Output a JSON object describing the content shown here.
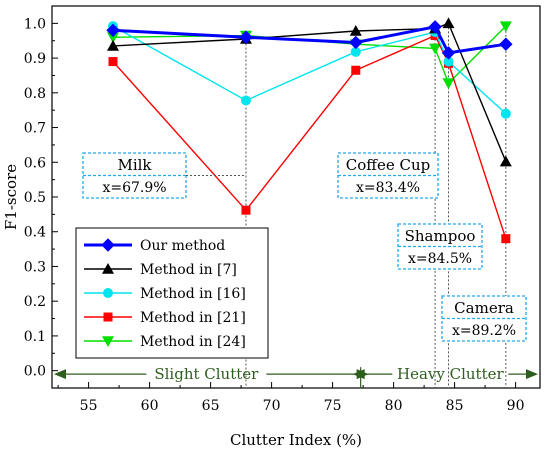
{
  "chart_data": {
    "type": "line",
    "xlabel": "Clutter Index (%)",
    "ylabel": "F1-score",
    "xlim": [
      52,
      92
    ],
    "ylim": [
      -0.05,
      1.05
    ],
    "xticks": [
      55,
      60,
      65,
      70,
      75,
      80,
      85,
      90
    ],
    "yticks": [
      0.0,
      0.1,
      0.2,
      0.3,
      0.4,
      0.5,
      0.6,
      0.7,
      0.8,
      0.9,
      1.0
    ],
    "x": [
      57.0,
      67.9,
      76.9,
      83.4,
      84.5,
      89.2
    ],
    "series": [
      {
        "name": "Our method",
        "color": "#0000ff",
        "marker": "diamond",
        "values": [
          0.98,
          0.96,
          0.945,
          0.99,
          0.915,
          0.94
        ]
      },
      {
        "name": "Method in [7]",
        "color": "#000000",
        "marker": "triangle-up",
        "values": [
          0.935,
          0.955,
          0.978,
          0.985,
          1.0,
          0.602
        ]
      },
      {
        "name": "Method in [16]",
        "color": "#00e5ee",
        "marker": "circle",
        "values": [
          0.992,
          0.778,
          0.918,
          0.975,
          0.89,
          0.74
        ]
      },
      {
        "name": "Method in [21]",
        "color": "#ff0000",
        "marker": "square",
        "values": [
          0.89,
          0.462,
          0.865,
          0.965,
          0.885,
          0.38
        ]
      },
      {
        "name": "Method in [24]",
        "color": "#00e000",
        "marker": "triangle-down",
        "values": [
          0.96,
          0.965,
          0.94,
          0.928,
          0.828,
          0.992
        ]
      }
    ],
    "annotations": [
      {
        "name": "Milk",
        "label": "x=67.9%",
        "x": 67.9
      },
      {
        "name": "Coffee Cup",
        "label": "x=83.4%",
        "x": 83.4
      },
      {
        "name": "Shampoo",
        "label": "x=84.5%",
        "x": 84.5
      },
      {
        "name": "Camera",
        "label": "x=89.2%",
        "x": 89.2
      }
    ],
    "regions": [
      {
        "label": "Slight Clutter",
        "from": 52,
        "to": 77.3
      },
      {
        "label": "Heavy Clutter",
        "from": 77.3,
        "to": 92
      }
    ],
    "region_color": "#2e5e1e",
    "legend_position": "bottom-left",
    "grid": false
  }
}
